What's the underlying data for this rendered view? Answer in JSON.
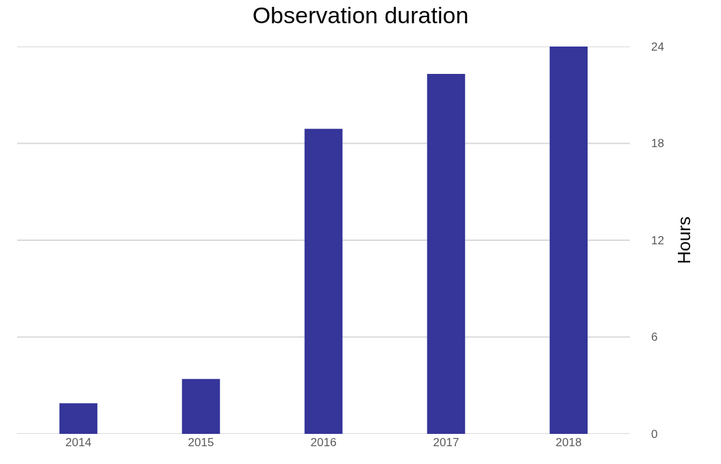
{
  "chart_data": {
    "type": "bar",
    "title": "Observation duration",
    "ylabel": "Hours",
    "categories": [
      "2014",
      "2015",
      "2016",
      "2017",
      "2018"
    ],
    "values": [
      1.9,
      3.4,
      18.9,
      22.3,
      24
    ],
    "color": "#35359a",
    "ylim": [
      0,
      24
    ],
    "yticks": [
      0,
      6,
      12,
      18,
      24
    ],
    "grid": "y"
  }
}
